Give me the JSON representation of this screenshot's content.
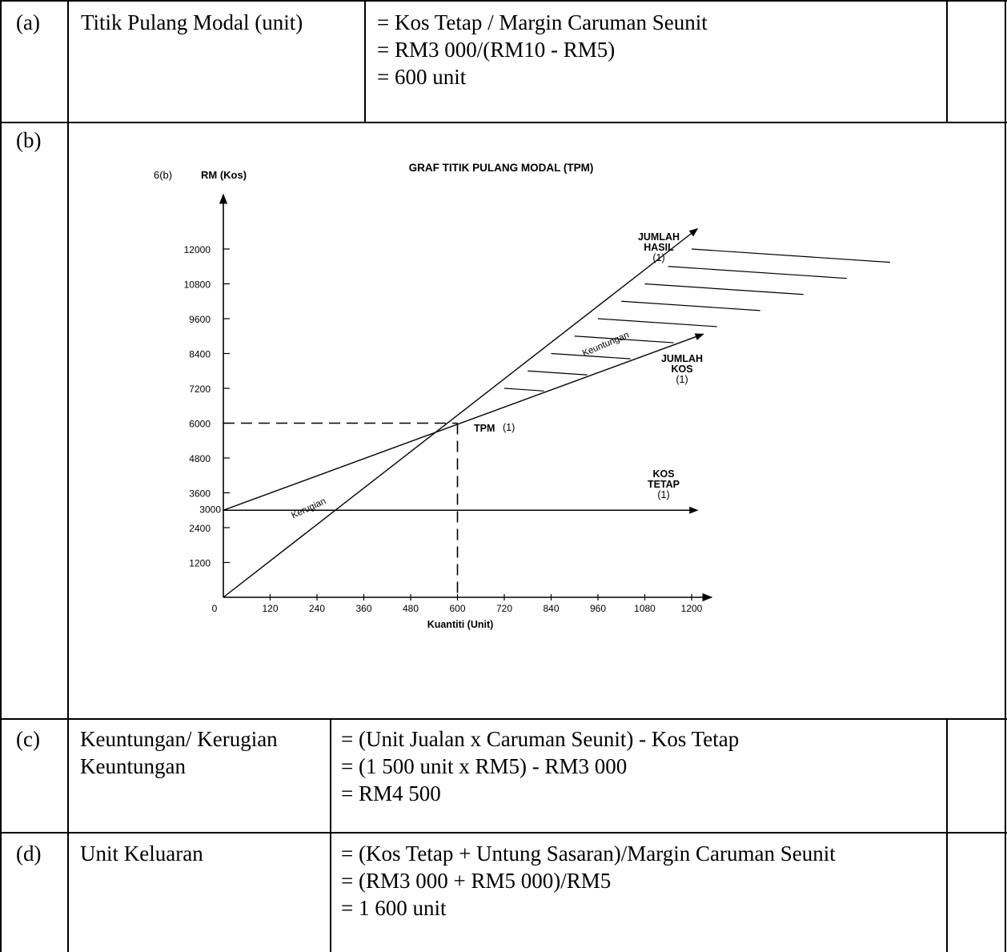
{
  "row_a": {
    "label": "(a)",
    "item": "Titik Pulang Modal (unit)",
    "lines": [
      "= Kos Tetap / Margin Caruman Seunit",
      "= RM3 000/(RM10 - RM5)",
      "= 600 unit"
    ]
  },
  "row_b": {
    "label": "(b)"
  },
  "row_c": {
    "label": "(c)",
    "item_lines": [
      "Keuntungan/ Kerugian",
      "Keuntungan"
    ],
    "lines": [
      "= (Unit Jualan x Caruman Seunit) - Kos Tetap",
      "= (1 500 unit x RM5) - RM3 000",
      "= RM4 500"
    ]
  },
  "row_d": {
    "label": "(d)",
    "item": "Unit Keluaran",
    "lines": [
      "= (Kos Tetap + Untung Sasaran)/Margin Caruman Seunit",
      "= (RM3 000 + RM5 000)/RM5",
      "= 1 600 unit"
    ]
  },
  "chart_data": {
    "type": "line",
    "title": "GRAF TITIK PULANG MODAL (TPM)",
    "question_label": "6(b)",
    "ylabel": "RM (Kos)",
    "xlabel": "Kuantiti (Unit)",
    "xlim": [
      0,
      1200
    ],
    "ylim": [
      0,
      12000
    ],
    "x_ticks": [
      "0",
      "120",
      "240",
      "360",
      "480",
      "600",
      "720",
      "840",
      "960",
      "1080",
      "1200"
    ],
    "y_ticks": [
      "1200",
      "2400",
      "3000",
      "3600",
      "4800",
      "6000",
      "7200",
      "8400",
      "9600",
      "10800",
      "12000"
    ],
    "series": [
      {
        "name_lines": [
          "JUMLAH",
          "HASIL",
          "(1)"
        ],
        "x": [
          0,
          1200
        ],
        "y": [
          0,
          12000
        ]
      },
      {
        "name_lines": [
          "JUMLAH",
          "KOS",
          "(1)"
        ],
        "x": [
          0,
          1200
        ],
        "y": [
          3000,
          9000
        ]
      },
      {
        "name_lines": [
          "KOS",
          "TETAP",
          "(1)"
        ],
        "x": [
          0,
          1200
        ],
        "y": [
          3000,
          3000
        ]
      }
    ],
    "breakeven": {
      "label": "TPM",
      "mark": "(1)",
      "x": 600,
      "y": 6000
    },
    "annotations": {
      "profit": "Keuntungan",
      "loss": "Kerugian"
    },
    "profit_hatch": true
  }
}
